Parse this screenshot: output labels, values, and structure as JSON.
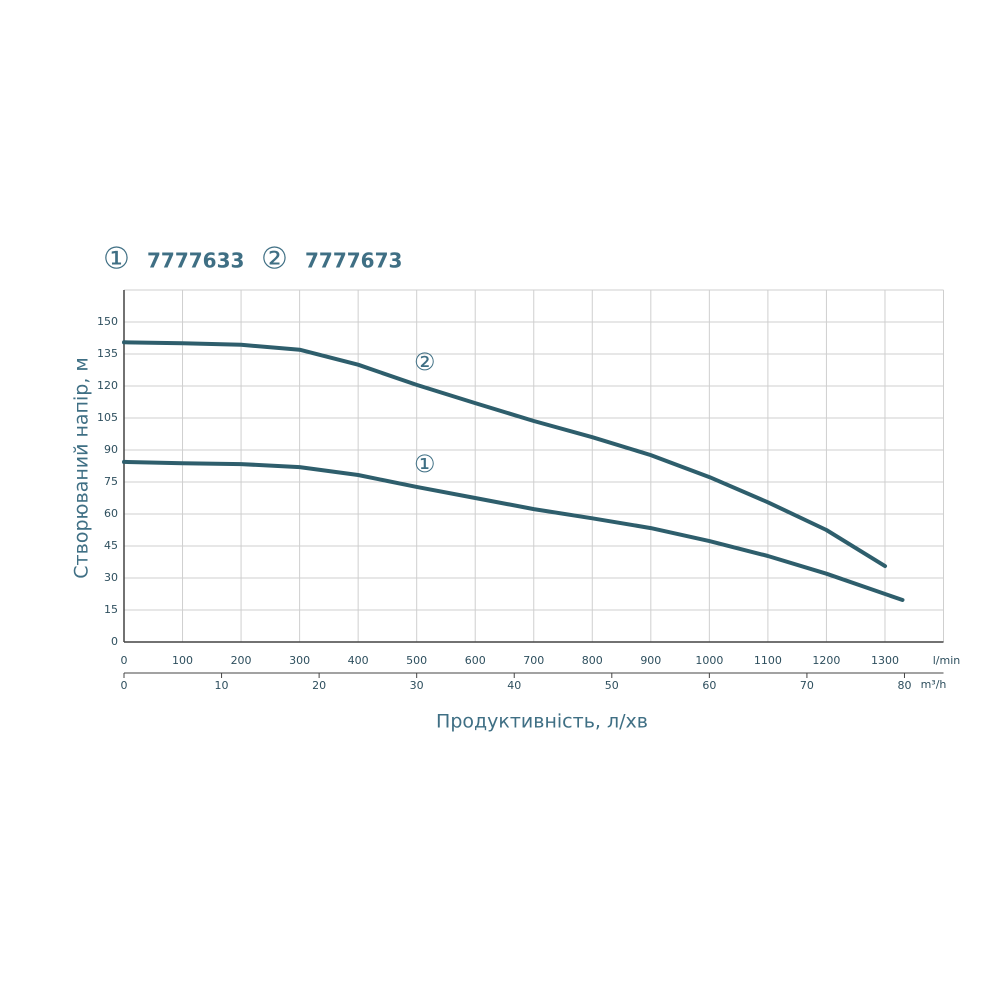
{
  "chart_data": {
    "type": "line",
    "y_label": "Створюваний напір, м",
    "x_label": "Продуктивність, л/хв",
    "x_unit": "l/min",
    "x2_unit": "m³/h",
    "xlim": [
      0,
      1400
    ],
    "xticks": [
      0,
      100,
      200,
      300,
      400,
      500,
      600,
      700,
      800,
      900,
      1000,
      1100,
      1200,
      1300
    ],
    "x2lim": [
      0,
      84
    ],
    "x2ticks": [
      0,
      10,
      20,
      30,
      40,
      50,
      60,
      70,
      80
    ],
    "ylim": [
      0,
      165
    ],
    "yticks": [
      0,
      15,
      30,
      45,
      60,
      75,
      90,
      105,
      120,
      135,
      150
    ],
    "grid": true,
    "series": [
      {
        "name": "7777633",
        "label": "①",
        "color": "#2e5e6c",
        "x": [
          0,
          100,
          200,
          300,
          400,
          500,
          600,
          700,
          800,
          900,
          1000,
          1100,
          1200,
          1330
        ],
        "values": [
          84.4,
          83.8,
          83.4,
          82,
          78.3,
          72.7,
          67.5,
          62.3,
          58,
          53.4,
          47.3,
          40.3,
          32,
          19.7
        ]
      },
      {
        "name": "7777673",
        "label": "②",
        "color": "#2e5e6c",
        "x": [
          0,
          100,
          200,
          300,
          400,
          500,
          600,
          700,
          800,
          900,
          1000,
          1100,
          1200,
          1300
        ],
        "values": [
          140.5,
          140,
          139.3,
          137,
          130,
          120.5,
          112,
          103.6,
          96,
          87.6,
          77.3,
          65.5,
          52.5,
          35.6
        ]
      }
    ]
  }
}
